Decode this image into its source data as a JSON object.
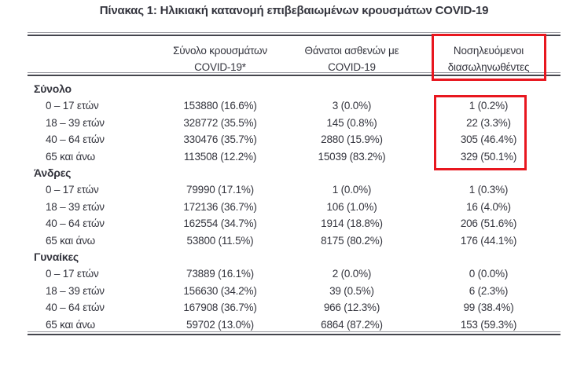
{
  "title": "Πίνακας 1: Ηλικιακή κατανομή επιβεβαιωμένων κρουσμάτων COVID-19",
  "colors": {
    "text": "#34353e",
    "rule_thin": "#97979e",
    "rule_thick": "#44454d",
    "highlight_red": "#e8171f"
  },
  "table": {
    "columns": [
      {
        "line1": "",
        "line2": ""
      },
      {
        "line1": "Σύνολο κρουσμάτων",
        "line2": "COVID-19*"
      },
      {
        "line1": "Θάνατοι ασθενών με",
        "line2": "COVID-19"
      },
      {
        "line1": "Νοσηλευόμενοι",
        "line2": "διασωληνωθέντες"
      }
    ],
    "sections": [
      {
        "label": "Σύνολο",
        "rows": [
          {
            "age": "0 – 17 ετών",
            "cases": "153880 (16.6%)",
            "deaths": "3 (0.0%)",
            "intubated": "1 (0.2%)"
          },
          {
            "age": "18 – 39 ετών",
            "cases": "328772 (35.5%)",
            "deaths": "145 (0.8%)",
            "intubated": "22 (3.3%)"
          },
          {
            "age": "40 – 64 ετών",
            "cases": "330476 (35.7%)",
            "deaths": "2880 (15.9%)",
            "intubated": "305 (46.4%)"
          },
          {
            "age": "65 και άνω",
            "cases": "113508 (12.2%)",
            "deaths": "15039 (83.2%)",
            "intubated": "329 (50.1%)"
          }
        ]
      },
      {
        "label": "Άνδρες",
        "rows": [
          {
            "age": "0 – 17 ετών",
            "cases": "79990 (17.1%)",
            "deaths": "1 (0.0%)",
            "intubated": "1 (0.3%)"
          },
          {
            "age": "18 – 39 ετών",
            "cases": "172136 (36.7%)",
            "deaths": "106 (1.0%)",
            "intubated": "16 (4.0%)"
          },
          {
            "age": "40 – 64 ετών",
            "cases": "162554 (34.7%)",
            "deaths": "1914 (18.8%)",
            "intubated": "206 (51.6%)"
          },
          {
            "age": "65 και άνω",
            "cases": "53800 (11.5%)",
            "deaths": "8175 (80.2%)",
            "intubated": "176 (44.1%)"
          }
        ]
      },
      {
        "label": "Γυναίκες",
        "rows": [
          {
            "age": "0 – 17 ετών",
            "cases": "73889 (16.1%)",
            "deaths": "2 (0.0%)",
            "intubated": "0 (0.0%)"
          },
          {
            "age": "18 – 39 ετών",
            "cases": "156630 (34.2%)",
            "deaths": "39 (0.5%)",
            "intubated": "6 (2.3%)"
          },
          {
            "age": "40 – 64 ετών",
            "cases": "167908 (36.7%)",
            "deaths": "966 (12.3%)",
            "intubated": "99 (38.4%)"
          },
          {
            "age": "65 και άνω",
            "cases": "59702 (13.0%)",
            "deaths": "6864 (87.2%)",
            "intubated": "153 (59.3%)"
          }
        ]
      }
    ]
  },
  "highlights": [
    {
      "name": "intubated-column-header",
      "target": "Νοσηλευόμενοι διασωληνωθέντες"
    },
    {
      "name": "intubated-total-values",
      "target": "Σύνολο: 1 (0.2%), 22 (3.3%), 305 (46.4%), 329 (50.1%)"
    }
  ]
}
